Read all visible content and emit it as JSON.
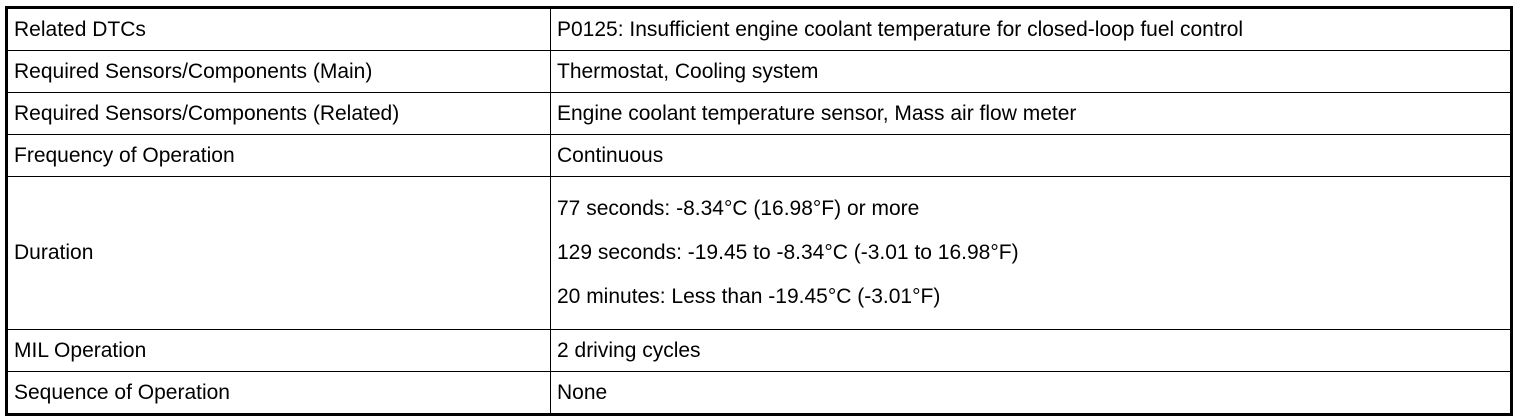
{
  "table": {
    "rows": [
      [
        "Related DTCs",
        "P0125: Insufficient engine coolant temperature for closed-loop fuel control"
      ],
      [
        "Required Sensors/Components (Main)",
        "Thermostat, Cooling system"
      ],
      [
        "Required Sensors/Components (Related)",
        "Engine coolant temperature sensor, Mass air flow meter"
      ],
      [
        "Frequency of Operation",
        "Continuous"
      ],
      [
        "Duration",
        [
          "77 seconds: -8.34°C (16.98°F) or more",
          "129 seconds: -19.45 to -8.34°C (-3.01 to 16.98°F)",
          "20 minutes: Less than -19.45°C (-3.01°F)"
        ]
      ],
      [
        "MIL Operation",
        "2 driving cycles"
      ],
      [
        "Sequence of Operation",
        "None"
      ]
    ]
  }
}
